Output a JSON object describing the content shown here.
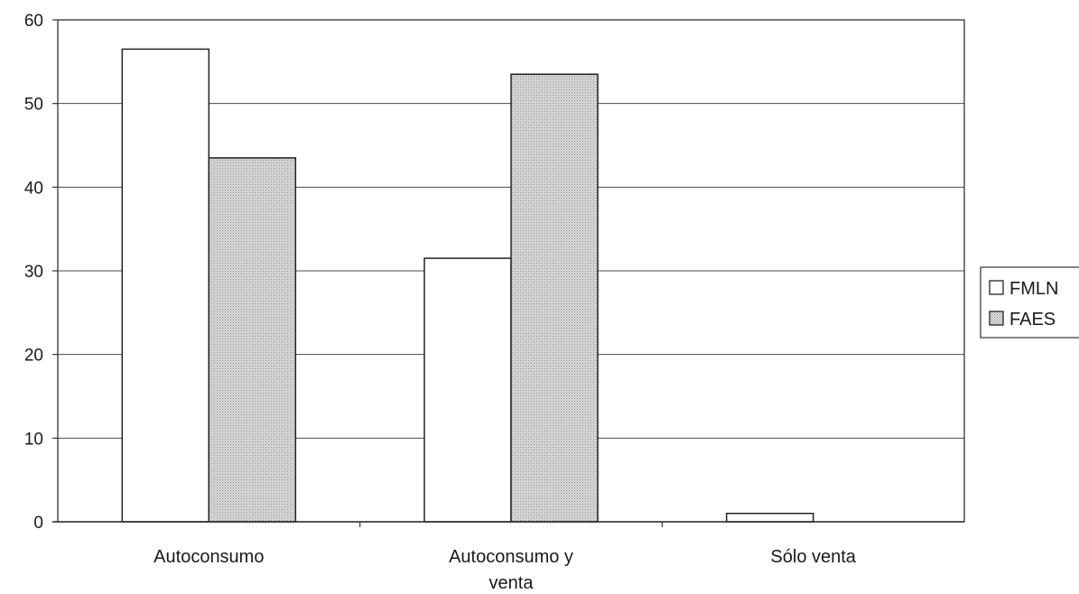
{
  "chart_data": {
    "type": "bar",
    "title": "",
    "xlabel": "",
    "ylabel": "",
    "categories": [
      [
        "Autoconsumo"
      ],
      [
        "Autoconsumo y",
        "venta"
      ],
      [
        "Sólo venta"
      ]
    ],
    "series": [
      {
        "name": "FMLN",
        "values": [
          56.5,
          31.5,
          1.0
        ],
        "color": "#ffffff",
        "pattern": "none"
      },
      {
        "name": "FAES",
        "values": [
          43.5,
          53.5,
          0
        ],
        "color": "#cfcfcf",
        "pattern": "dotted"
      }
    ],
    "ylim": [
      0,
      60
    ],
    "yticks": [
      0,
      10,
      20,
      30,
      40,
      50,
      60
    ],
    "grid": true,
    "legend": "right"
  }
}
